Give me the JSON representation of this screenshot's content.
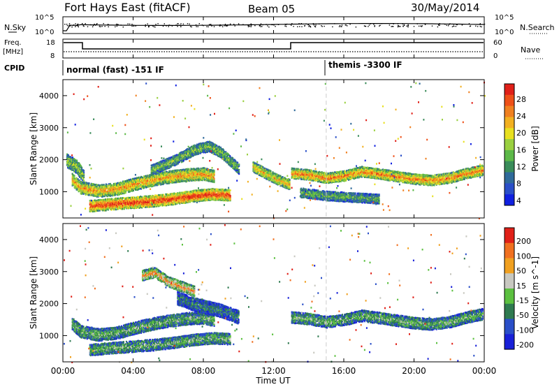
{
  "header": {
    "title": "Fort Hays East (fitACF)",
    "beam": "Beam 05",
    "date": "30/May/2014"
  },
  "top_panels": {
    "nsky_label": "N.Sky",
    "nsky_ticks": [
      "10^5",
      "10^0"
    ],
    "nsearch_label": "N.Search",
    "nsearch_ticks": [
      "10^5",
      "10^0"
    ],
    "freq_label_line1": "Freq.",
    "freq_label_line2": "[MHz]",
    "freq_ticks": [
      "18",
      "8"
    ],
    "nave_label": "Nave",
    "nave_ticks": [
      "60",
      "0"
    ],
    "cpid_label": "CPID",
    "cpid_segments": [
      {
        "label": "normal (fast) -151 IF"
      },
      {
        "label": "themis -3300 IF"
      }
    ]
  },
  "time_axis": {
    "label": "Time UT",
    "ticks": [
      "00:00",
      "04:00",
      "08:00",
      "12:00",
      "16:00",
      "20:00",
      "00:00"
    ]
  },
  "chart_data": [
    {
      "type": "heatmap",
      "name": "power",
      "ylabel": "Slant Range [km]",
      "yticks": [
        1000,
        2000,
        3000,
        4000
      ],
      "ylim": [
        180,
        4500
      ],
      "xlim_hours": [
        0,
        24
      ],
      "colorbar_label": "Power [dB]",
      "colorbar_ticks": [
        "28",
        "24",
        "20",
        "16",
        "12",
        "8",
        "4"
      ],
      "colors": [
        "#1020e0",
        "#2a4fc8",
        "#2f6a9a",
        "#3a8c5a",
        "#5cb848",
        "#9ad040",
        "#e8e020",
        "#f2b020",
        "#f08020",
        "#ee5018",
        "#e02018"
      ],
      "bands": [
        {
          "t": [
            0.5,
            1.0,
            2.0,
            3.0,
            4.0,
            5.0,
            6.0,
            7.0,
            8.0,
            8.6
          ],
          "r": [
            1400,
            1150,
            1050,
            1100,
            1250,
            1380,
            1480,
            1550,
            1580,
            1500
          ],
          "w": 180,
          "level": 0.75
        },
        {
          "t": [
            1.5,
            3.0,
            5.0,
            6.5,
            7.5,
            8.5,
            9.5
          ],
          "r": [
            580,
            650,
            730,
            820,
            900,
            950,
            920
          ],
          "w": 170,
          "level": 0.95
        },
        {
          "t": [
            5.0,
            6.5,
            7.5,
            8.3,
            9.0,
            10.0
          ],
          "r": [
            1700,
            2050,
            2350,
            2450,
            2250,
            1750
          ],
          "w": 160,
          "level": 0.45
        },
        {
          "t": [
            0.2,
            0.8,
            1.2
          ],
          "r": [
            2000,
            1800,
            1450
          ],
          "w": 200,
          "level": 0.5
        },
        {
          "t": [
            10.8,
            11.5,
            12.2,
            12.9
          ],
          "r": [
            1800,
            1600,
            1400,
            1250
          ],
          "w": 150,
          "level": 0.7
        },
        {
          "t": [
            13.0,
            14.0,
            15.0,
            16.0,
            17.0,
            18.0,
            19.0,
            20.0,
            21.0,
            22.0,
            23.0,
            23.9
          ],
          "r": [
            1600,
            1550,
            1450,
            1520,
            1650,
            1580,
            1500,
            1420,
            1380,
            1450,
            1600,
            1700
          ],
          "w": 150,
          "level": 0.8
        },
        {
          "t": [
            13.5,
            15.0,
            16.5,
            18.0
          ],
          "r": [
            1000,
            900,
            850,
            800
          ],
          "w": 140,
          "level": 0.4
        }
      ]
    },
    {
      "type": "heatmap",
      "name": "velocity",
      "ylabel": "Slant Range [km]",
      "yticks": [
        1000,
        2000,
        3000,
        4000
      ],
      "ylim": [
        180,
        4500
      ],
      "xlim_hours": [
        0,
        24
      ],
      "colorbar_label": "Velocity [m s^-1]",
      "colorbar_ticks": [
        "200",
        "100",
        "50",
        "15",
        "-15",
        "-50",
        "-100",
        "-200"
      ],
      "colors": [
        "#1820d8",
        "#2a4fc8",
        "#2f7a50",
        "#5cc040",
        "#c8c8c0",
        "#f0a020",
        "#f07020",
        "#e02018"
      ],
      "bands": [
        {
          "t": [
            0.5,
            1.0,
            2.0,
            3.0,
            4.0,
            5.0,
            6.0,
            7.0,
            8.0,
            8.6
          ],
          "r": [
            1400,
            1150,
            1050,
            1100,
            1250,
            1380,
            1480,
            1550,
            1580,
            1500
          ],
          "w": 180,
          "level": 0.45
        },
        {
          "t": [
            1.5,
            3.0,
            5.0,
            6.5,
            7.5,
            8.5,
            9.5
          ],
          "r": [
            580,
            650,
            730,
            820,
            900,
            950,
            920
          ],
          "w": 170,
          "level": 0.45
        },
        {
          "t": [
            6.5,
            7.5,
            8.3,
            9.0,
            10.0
          ],
          "r": [
            2200,
            2000,
            1900,
            1800,
            1600
          ],
          "w": 200,
          "level": 0.3
        },
        {
          "t": [
            4.5,
            5.2,
            6.0,
            6.8,
            7.5
          ],
          "r": [
            2900,
            3000,
            2700,
            2550,
            2400
          ],
          "w": 150,
          "level": 0.75
        },
        {
          "t": [
            13.0,
            14.0,
            15.0,
            16.0,
            17.0,
            18.0,
            19.0,
            20.0,
            21.0,
            22.0,
            23.0,
            23.9
          ],
          "r": [
            1600,
            1550,
            1450,
            1520,
            1650,
            1580,
            1500,
            1420,
            1380,
            1450,
            1600,
            1700
          ],
          "w": 170,
          "level": 0.45
        }
      ]
    }
  ]
}
